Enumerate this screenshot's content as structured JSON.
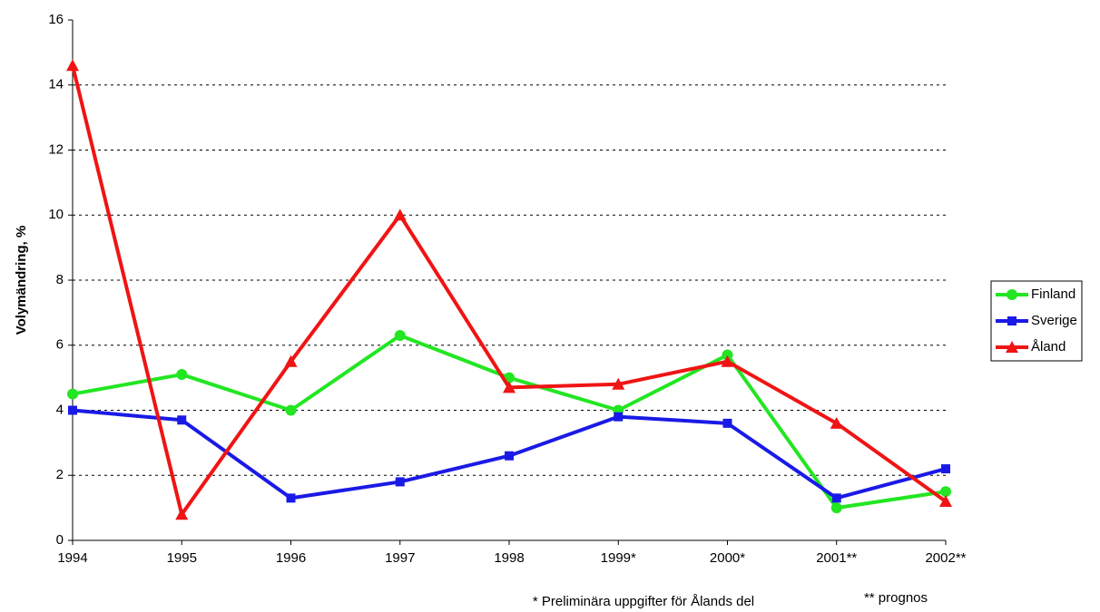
{
  "chart_data": {
    "type": "line",
    "y_label": "Volymändring, %",
    "categories": [
      "1994",
      "1995",
      "1996",
      "1997",
      "1998",
      "1999*",
      "2000*",
      "2001**",
      "2002**"
    ],
    "series": [
      {
        "name": "Finland",
        "color": "#22e622",
        "marker": "circle",
        "values": [
          4.5,
          5.1,
          4.0,
          6.3,
          5.0,
          4.0,
          5.7,
          1.0,
          1.5
        ]
      },
      {
        "name": "Sverige",
        "color": "#1a1ae6",
        "marker": "square",
        "values": [
          4.0,
          3.7,
          1.3,
          1.8,
          2.6,
          3.8,
          3.6,
          1.3,
          2.2
        ]
      },
      {
        "name": "Åland",
        "color": "#f01414",
        "marker": "triangle",
        "values": [
          14.6,
          0.8,
          5.5,
          10.0,
          4.7,
          4.8,
          5.5,
          3.6,
          1.2
        ]
      }
    ],
    "ylim": [
      0,
      16
    ],
    "yticks": [
      0,
      2,
      4,
      6,
      8,
      10,
      12,
      14,
      16
    ],
    "grid": true,
    "legend": "right",
    "annotations": [
      "* Preliminära uppgifter för Ålands del",
      "** prognos"
    ]
  }
}
